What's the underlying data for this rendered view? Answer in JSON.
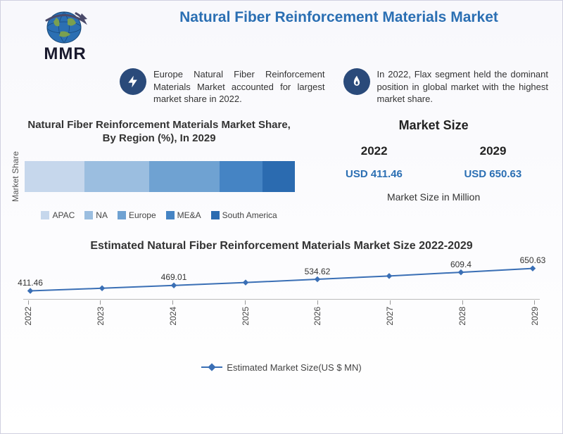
{
  "logo_text": "MMR",
  "title": "Natural Fiber Reinforcement Materials Market",
  "facts": [
    {
      "icon": "bolt",
      "text": "Europe Natural Fiber Reinforcement Materials Market accounted for largest market share in 2022."
    },
    {
      "icon": "flame",
      "text": "In 2022, Flax segment held the dominant position in global market with the highest market share."
    }
  ],
  "share_chart": {
    "title_l1": "Natural Fiber Reinforcement Materials Market Share,",
    "title_l2": "By Region (%), In 2029",
    "y_label": "Market Share",
    "type": "stacked-bar-horizontal",
    "segments": [
      {
        "name": "APAC",
        "value": 22,
        "color": "#c6d7ec"
      },
      {
        "name": "NA",
        "value": 24,
        "color": "#9bbee0"
      },
      {
        "name": "Europe",
        "value": 26,
        "color": "#6fa2d2"
      },
      {
        "name": "ME&A",
        "value": 16,
        "color": "#4584c4"
      },
      {
        "name": "South America",
        "value": 12,
        "color": "#2b6bb0"
      }
    ]
  },
  "market_size": {
    "title": "Market Size",
    "year1": "2022",
    "val1": "USD 411.46",
    "year2": "2029",
    "val2": "USD 650.63",
    "caption": "Market Size in Million",
    "value_color": "#2b6fb3"
  },
  "line_chart": {
    "title": "Estimated Natural Fiber Reinforcement Materials Market Size 2022-2029",
    "legend": "Estimated Market Size(US $ MN)",
    "type": "line",
    "line_color": "#3a6fb5",
    "marker_color": "#3a6fb5",
    "marker_shape": "diamond",
    "marker_size": 8,
    "ylim": [
      400,
      670
    ],
    "points": [
      {
        "year": "2022",
        "value": 411.46,
        "show_label": true
      },
      {
        "year": "2023",
        "value": 439,
        "show_label": false
      },
      {
        "year": "2024",
        "value": 469.01,
        "show_label": true
      },
      {
        "year": "2025",
        "value": 500,
        "show_label": false
      },
      {
        "year": "2026",
        "value": 534.62,
        "show_label": true
      },
      {
        "year": "2027",
        "value": 570,
        "show_label": false
      },
      {
        "year": "2028",
        "value": 609.4,
        "show_label": true
      },
      {
        "year": "2029",
        "value": 650.63,
        "show_label": true
      }
    ]
  }
}
